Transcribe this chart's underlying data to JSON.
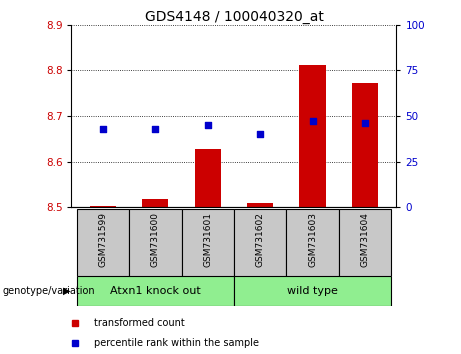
{
  "title": "GDS4148 / 100040320_at",
  "samples": [
    "GSM731599",
    "GSM731600",
    "GSM731601",
    "GSM731602",
    "GSM731603",
    "GSM731604"
  ],
  "transformed_count": [
    8.503,
    8.517,
    8.628,
    8.508,
    8.812,
    8.772
  ],
  "percentile_rank": [
    43,
    43,
    45,
    40,
    47,
    46
  ],
  "ylim_left": [
    8.5,
    8.9
  ],
  "ylim_right": [
    0,
    100
  ],
  "yticks_left": [
    8.5,
    8.6,
    8.7,
    8.8,
    8.9
  ],
  "yticks_right": [
    0,
    25,
    50,
    75,
    100
  ],
  "groups": [
    {
      "label": "Atxn1 knock out",
      "color": "#90EE90",
      "start": 0,
      "end": 3
    },
    {
      "label": "wild type",
      "color": "#90EE90",
      "start": 3,
      "end": 6
    }
  ],
  "group_label": "genotype/variation",
  "bar_color": "#CC0000",
  "dot_color": "#0000CC",
  "background_label": "#c8c8c8",
  "title_fontsize": 10,
  "tick_fontsize": 7.5,
  "label_fontsize": 6.5,
  "legend_fontsize": 7,
  "group_fontsize": 8
}
